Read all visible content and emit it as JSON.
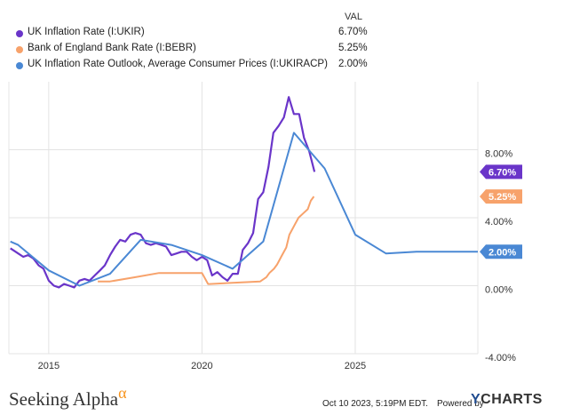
{
  "legend": {
    "header": "VAL",
    "entries": [
      {
        "name": "UK Inflation Rate (I:UKIR)",
        "value": "6.70%",
        "color": "#6a35c9"
      },
      {
        "name": "Bank of England Bank Rate (I:BEBR)",
        "value": "5.25%",
        "color": "#f7a26b"
      },
      {
        "name": "UK Inflation Rate Outlook, Average Consumer Prices (I:UKIRACP)",
        "value": "2.00%",
        "color": "#4a88d4"
      }
    ]
  },
  "chart_data": {
    "type": "line",
    "x_ticks": [
      "2015",
      "2020",
      "2025"
    ],
    "y_ticks": [
      "8.00%",
      "4.00%",
      "0.00%",
      "-4.00%"
    ],
    "ylim": [
      -4,
      12
    ],
    "xlim": [
      2013.7,
      2029.0
    ],
    "grid": true,
    "series": [
      {
        "name": "UK Inflation Rate (I:UKIR)",
        "color": "#6a35c9",
        "end_label": "6.70%",
        "points": [
          [
            2013.75,
            2.2
          ],
          [
            2013.92,
            2.0
          ],
          [
            2014.0,
            1.9
          ],
          [
            2014.17,
            1.7
          ],
          [
            2014.33,
            1.8
          ],
          [
            2014.5,
            1.6
          ],
          [
            2014.67,
            1.2
          ],
          [
            2014.83,
            1.0
          ],
          [
            2015.0,
            0.3
          ],
          [
            2015.17,
            0.0
          ],
          [
            2015.33,
            -0.1
          ],
          [
            2015.5,
            0.1
          ],
          [
            2015.67,
            0.0
          ],
          [
            2015.83,
            -0.1
          ],
          [
            2016.0,
            0.3
          ],
          [
            2016.17,
            0.4
          ],
          [
            2016.33,
            0.3
          ],
          [
            2016.5,
            0.6
          ],
          [
            2016.67,
            0.9
          ],
          [
            2016.83,
            1.2
          ],
          [
            2017.0,
            1.8
          ],
          [
            2017.17,
            2.3
          ],
          [
            2017.33,
            2.7
          ],
          [
            2017.5,
            2.6
          ],
          [
            2017.67,
            3.0
          ],
          [
            2017.83,
            3.1
          ],
          [
            2018.0,
            3.0
          ],
          [
            2018.17,
            2.5
          ],
          [
            2018.33,
            2.4
          ],
          [
            2018.5,
            2.5
          ],
          [
            2018.67,
            2.4
          ],
          [
            2018.83,
            2.3
          ],
          [
            2019.0,
            1.8
          ],
          [
            2019.17,
            1.9
          ],
          [
            2019.33,
            2.0
          ],
          [
            2019.5,
            2.0
          ],
          [
            2019.67,
            1.7
          ],
          [
            2019.83,
            1.5
          ],
          [
            2020.0,
            1.7
          ],
          [
            2020.17,
            1.5
          ],
          [
            2020.33,
            0.6
          ],
          [
            2020.5,
            0.8
          ],
          [
            2020.67,
            0.5
          ],
          [
            2020.83,
            0.3
          ],
          [
            2021.0,
            0.7
          ],
          [
            2021.17,
            0.7
          ],
          [
            2021.33,
            2.1
          ],
          [
            2021.5,
            2.5
          ],
          [
            2021.67,
            3.1
          ],
          [
            2021.83,
            5.1
          ],
          [
            2022.0,
            5.5
          ],
          [
            2022.17,
            7.0
          ],
          [
            2022.33,
            9.0
          ],
          [
            2022.5,
            9.4
          ],
          [
            2022.67,
            9.9
          ],
          [
            2022.83,
            11.1
          ],
          [
            2023.0,
            10.1
          ],
          [
            2023.17,
            10.1
          ],
          [
            2023.33,
            8.7
          ],
          [
            2023.5,
            7.9
          ],
          [
            2023.67,
            6.7
          ]
        ]
      },
      {
        "name": "Bank of England Bank Rate (I:BEBR)",
        "color": "#f7a26b",
        "end_label": "5.25%",
        "points": [
          [
            2016.6,
            0.25
          ],
          [
            2017.0,
            0.25
          ],
          [
            2017.83,
            0.5
          ],
          [
            2018.6,
            0.75
          ],
          [
            2019.0,
            0.75
          ],
          [
            2020.0,
            0.75
          ],
          [
            2020.2,
            0.1
          ],
          [
            2020.25,
            0.1
          ],
          [
            2021.9,
            0.25
          ],
          [
            2022.1,
            0.5
          ],
          [
            2022.2,
            0.75
          ],
          [
            2022.35,
            1.0
          ],
          [
            2022.45,
            1.25
          ],
          [
            2022.6,
            1.75
          ],
          [
            2022.75,
            2.25
          ],
          [
            2022.85,
            3.0
          ],
          [
            2023.0,
            3.5
          ],
          [
            2023.15,
            4.0
          ],
          [
            2023.3,
            4.25
          ],
          [
            2023.45,
            4.5
          ],
          [
            2023.55,
            5.0
          ],
          [
            2023.65,
            5.25
          ]
        ]
      },
      {
        "name": "UK Inflation Rate Outlook, Average Consumer Prices (I:UKIRACP)",
        "color": "#4a88d4",
        "end_label": "2.00%",
        "points": [
          [
            2013.75,
            2.6
          ],
          [
            2014.0,
            2.4
          ],
          [
            2015.0,
            0.9
          ],
          [
            2016.0,
            0.0
          ],
          [
            2017.0,
            0.7
          ],
          [
            2018.0,
            2.7
          ],
          [
            2019.0,
            2.4
          ],
          [
            2020.0,
            1.8
          ],
          [
            2021.0,
            1.0
          ],
          [
            2022.0,
            2.6
          ],
          [
            2023.0,
            9.0
          ],
          [
            2024.0,
            6.9
          ],
          [
            2025.0,
            3.0
          ],
          [
            2026.0,
            1.9
          ],
          [
            2027.0,
            2.0
          ],
          [
            2029.0,
            2.0
          ]
        ]
      }
    ]
  },
  "footer": {
    "brand": "Seeking Alpha",
    "brand_mark": "α",
    "timestamp": "Oct 10 2023, 5:19PM EDT.",
    "powered_by": "Powered by",
    "ycharts_y": "Y",
    "ycharts_rest": "CHARTS"
  }
}
